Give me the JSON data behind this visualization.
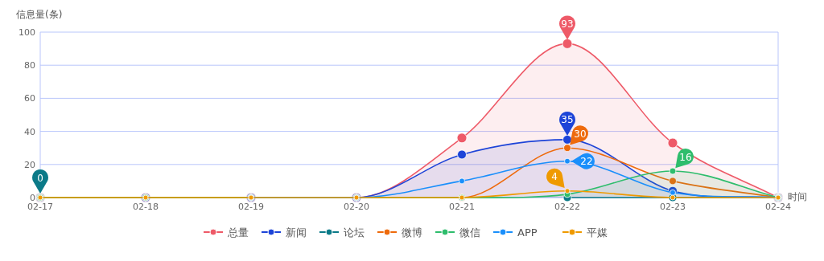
{
  "chart_data": {
    "type": "line",
    "xlabel": "时间",
    "ylabel": "信息量(条)",
    "categories": [
      "02-17",
      "02-18",
      "02-19",
      "02-20",
      "02-21",
      "02-22",
      "02-23",
      "02-24"
    ],
    "ylim": [
      0,
      100
    ],
    "yticks": [
      0,
      20,
      40,
      60,
      80,
      100
    ],
    "grid": "y",
    "legend": "bottom",
    "marker": "circle",
    "line_style": "solid",
    "series": [
      {
        "name": "总量",
        "type": "area",
        "color": "#ee5a68",
        "values": [
          0,
          0,
          0,
          0,
          36,
          93,
          33,
          0
        ],
        "value_labels": [
          null,
          null,
          null,
          null,
          null,
          "93",
          null,
          null
        ]
      },
      {
        "name": "新闻",
        "type": "area",
        "color": "#1d44d8",
        "values": [
          0,
          0,
          0,
          0,
          26,
          35,
          4,
          0
        ],
        "value_labels": [
          null,
          null,
          null,
          null,
          null,
          "35",
          null,
          null
        ]
      },
      {
        "name": "论坛",
        "color": "#0b7a88",
        "values": [
          0,
          null,
          null,
          null,
          null,
          0,
          0,
          0
        ],
        "value_labels": [
          "0",
          null,
          null,
          null,
          null,
          null,
          null,
          null
        ]
      },
      {
        "name": "微博",
        "color": "#ee6a0c",
        "values": [
          0,
          0,
          0,
          0,
          0,
          30,
          10,
          0
        ],
        "value_labels": [
          null,
          null,
          null,
          null,
          null,
          "30",
          null,
          null
        ]
      },
      {
        "name": "微信",
        "type": "area",
        "color": "#2ebd6c",
        "values": [
          0,
          0,
          0,
          0,
          0,
          2,
          16,
          0
        ],
        "value_labels": [
          null,
          null,
          null,
          null,
          null,
          null,
          "16",
          null
        ]
      },
      {
        "name": "APP",
        "color": "#1a8ffb",
        "values": [
          null,
          null,
          0,
          0,
          10,
          22,
          3,
          0
        ],
        "value_labels": [
          null,
          null,
          null,
          null,
          null,
          "22",
          null,
          null
        ]
      },
      {
        "name": "平媒",
        "color": "#ef9a00",
        "values": [
          0,
          0,
          0,
          0,
          0,
          4,
          0,
          0
        ],
        "value_labels": [
          null,
          null,
          null,
          null,
          null,
          "4",
          null,
          null
        ]
      }
    ]
  }
}
